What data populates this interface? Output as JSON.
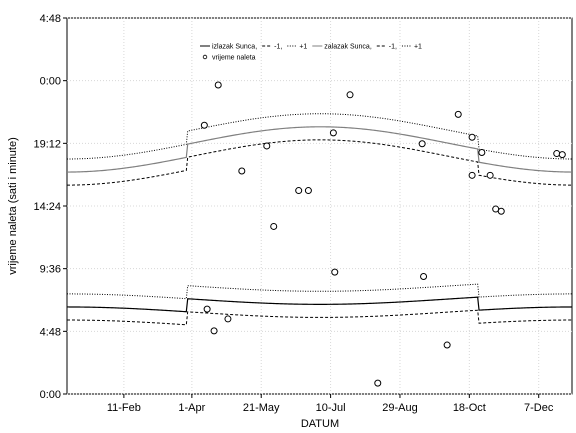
{
  "chart_data": {
    "type": "scatter",
    "xlabel": "DATUM",
    "ylabel": "vrijeme naleta (sati i minute)",
    "xlim": [
      1,
      365
    ],
    "ylim": [
      0,
      1728
    ],
    "x_ticks": [
      {
        "day": 42,
        "label": "11-Feb"
      },
      {
        "day": 91,
        "label": "1-Apr"
      },
      {
        "day": 141,
        "label": "21-May"
      },
      {
        "day": 191,
        "label": "10-Jul"
      },
      {
        "day": 241,
        "label": "29-Aug"
      },
      {
        "day": 291,
        "label": "18-Oct"
      },
      {
        "day": 341,
        "label": "7-Dec"
      }
    ],
    "y_ticks": [
      {
        "minutes": 0,
        "label": "0:00"
      },
      {
        "minutes": 288,
        "label": "4:48"
      },
      {
        "minutes": 576,
        "label": "9:36"
      },
      {
        "minutes": 864,
        "label": "14:24"
      },
      {
        "minutes": 1152,
        "label": "19:12"
      },
      {
        "minutes": 1440,
        "label": "0:00"
      },
      {
        "minutes": 1728,
        "label": "4:48"
      }
    ],
    "dst_start_day": 88,
    "dst_end_day": 298,
    "series": [
      {
        "name": "izlazak Sunca",
        "style": "solid",
        "color": "#000000",
        "minutes_start": 400,
        "minutes_mid": 352,
        "dst_shift": 60
      },
      {
        "name": "-1",
        "style": "dashed",
        "color": "#000000",
        "minutes_start": 340,
        "minutes_mid": 292,
        "dst_shift": 60
      },
      {
        "name": "+1",
        "style": "dotted",
        "color": "#000000",
        "minutes_start": 460,
        "minutes_mid": 412,
        "dst_shift": 60
      },
      {
        "name": "zalazak Sunca",
        "style": "solid",
        "color": "#808080",
        "minutes_start": 1020,
        "minutes_mid": 1168,
        "dst_shift": 60
      },
      {
        "name": "-1",
        "style": "dashed",
        "color": "#000000",
        "minutes_start": 960,
        "minutes_mid": 1108,
        "dst_shift": 60
      },
      {
        "name": "+1",
        "style": "dotted",
        "color": "#000000",
        "minutes_start": 1080,
        "minutes_mid": 1228,
        "dst_shift": 60
      }
    ],
    "points_name": "vrijeme naleta",
    "points": [
      {
        "x": 100,
        "y": 1235
      },
      {
        "x": 102,
        "y": 390
      },
      {
        "x": 107,
        "y": 290
      },
      {
        "x": 110,
        "y": 1420
      },
      {
        "x": 117,
        "y": 345
      },
      {
        "x": 127,
        "y": 1025
      },
      {
        "x": 145,
        "y": 1140
      },
      {
        "x": 150,
        "y": 770
      },
      {
        "x": 168,
        "y": 935
      },
      {
        "x": 175,
        "y": 935
      },
      {
        "x": 193,
        "y": 1200
      },
      {
        "x": 194,
        "y": 560
      },
      {
        "x": 205,
        "y": 1375
      },
      {
        "x": 225,
        "y": 50
      },
      {
        "x": 257,
        "y": 1150
      },
      {
        "x": 258,
        "y": 540
      },
      {
        "x": 275,
        "y": 225
      },
      {
        "x": 283,
        "y": 1285
      },
      {
        "x": 293,
        "y": 1180
      },
      {
        "x": 293,
        "y": 1005
      },
      {
        "x": 300,
        "y": 1110
      },
      {
        "x": 306,
        "y": 1005
      },
      {
        "x": 310,
        "y": 850
      },
      {
        "x": 314,
        "y": 840
      },
      {
        "x": 354,
        "y": 1105
      },
      {
        "x": 358,
        "y": 1100
      }
    ]
  }
}
